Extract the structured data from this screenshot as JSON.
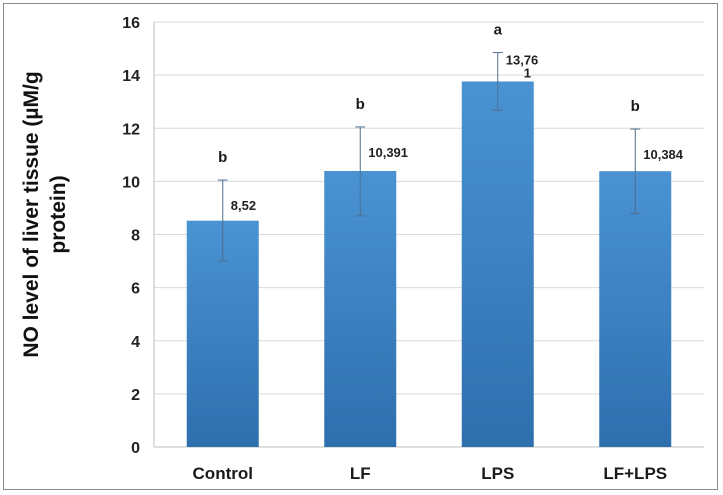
{
  "chart_data": {
    "type": "bar",
    "title": "",
    "xlabel": "",
    "ylabel_lines": [
      "NO level of liver tissue (µM/g",
      "protein)"
    ],
    "categories": [
      "Control",
      "LF",
      "LPS",
      "LF+LPS"
    ],
    "values": [
      8.52,
      10.391,
      13.761,
      10.384
    ],
    "value_labels": [
      [
        "8,52"
      ],
      [
        "10,391"
      ],
      [
        "13,76",
        "1"
      ],
      [
        "10,384"
      ]
    ],
    "error_upper": [
      10.05,
      12.05,
      14.85,
      11.97
    ],
    "error_lower": [
      7.0,
      8.7,
      12.68,
      8.8
    ],
    "significance": [
      "b",
      "b",
      "a",
      "b"
    ],
    "ylim": [
      0,
      16
    ],
    "yticks": [
      "0",
      "2",
      "4",
      "6",
      "8",
      "10",
      "12",
      "14",
      "16"
    ],
    "grid": true,
    "legend": "none",
    "colors": {
      "bar_top": "#4a93d3",
      "bar_bottom": "#2e6fae",
      "grid": "#d9d9d9",
      "error_bar": "#4f6f8f"
    }
  }
}
